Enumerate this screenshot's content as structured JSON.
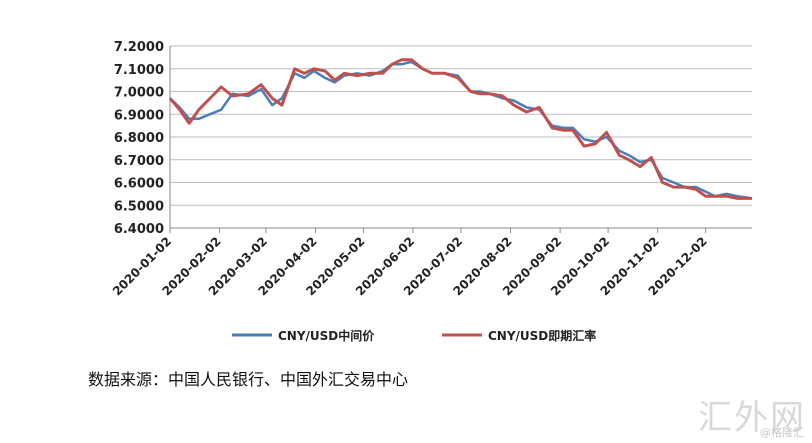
{
  "chart_data": {
    "type": "line",
    "title": "",
    "xlabel": "",
    "ylabel": "",
    "ylim": [
      6.4,
      7.2
    ],
    "yticks": [
      "6.4000",
      "6.5000",
      "6.6000",
      "6.7000",
      "6.8000",
      "6.9000",
      "7.0000",
      "7.1000",
      "7.2000"
    ],
    "x_range": [
      "2020-01-02",
      "2020-12-31"
    ],
    "xticks": [
      "2020-01-02",
      "2020-02-02",
      "2020-03-02",
      "2020-04-02",
      "2020-05-02",
      "2020-06-02",
      "2020-07-02",
      "2020-08-02",
      "2020-09-02",
      "2020-10-02",
      "2020-11-02",
      "2020-12-02"
    ],
    "grid": true,
    "legend": "bottom",
    "series": [
      {
        "name": "CNY/USD中间价",
        "color": "#4a7ebb",
        "x": [
          "2020-01-02",
          "2020-01-08",
          "2020-01-14",
          "2020-01-20",
          "2020-02-03",
          "2020-02-10",
          "2020-02-20",
          "2020-02-28",
          "2020-03-06",
          "2020-03-12",
          "2020-03-20",
          "2020-03-26",
          "2020-04-01",
          "2020-04-08",
          "2020-04-14",
          "2020-04-20",
          "2020-04-28",
          "2020-05-06",
          "2020-05-14",
          "2020-05-20",
          "2020-05-26",
          "2020-06-01",
          "2020-06-08",
          "2020-06-14",
          "2020-06-22",
          "2020-06-30",
          "2020-07-08",
          "2020-07-14",
          "2020-07-20",
          "2020-07-28",
          "2020-08-04",
          "2020-08-12",
          "2020-08-20",
          "2020-08-28",
          "2020-09-04",
          "2020-09-10",
          "2020-09-17",
          "2020-09-24",
          "2020-10-01",
          "2020-10-09",
          "2020-10-15",
          "2020-10-22",
          "2020-10-29",
          "2020-11-05",
          "2020-11-12",
          "2020-11-19",
          "2020-11-26",
          "2020-12-02",
          "2020-12-08",
          "2020-12-15",
          "2020-12-22",
          "2020-12-31"
        ],
        "values": [
          6.97,
          6.93,
          6.88,
          6.88,
          6.92,
          6.99,
          6.98,
          7.01,
          6.94,
          6.97,
          7.08,
          7.06,
          7.09,
          7.06,
          7.04,
          7.07,
          7.08,
          7.07,
          7.09,
          7.12,
          7.12,
          7.13,
          7.1,
          7.08,
          7.08,
          7.07,
          7.0,
          7.0,
          6.99,
          6.97,
          6.96,
          6.93,
          6.92,
          6.85,
          6.84,
          6.84,
          6.79,
          6.78,
          6.8,
          6.74,
          6.72,
          6.69,
          6.7,
          6.62,
          6.6,
          6.58,
          6.58,
          6.56,
          6.54,
          6.55,
          6.54,
          6.53
        ]
      },
      {
        "name": "CNY/USD即期汇率",
        "color": "#c0504d",
        "x": [
          "2020-01-02",
          "2020-01-08",
          "2020-01-14",
          "2020-01-20",
          "2020-02-03",
          "2020-02-10",
          "2020-02-20",
          "2020-02-28",
          "2020-03-06",
          "2020-03-12",
          "2020-03-20",
          "2020-03-26",
          "2020-04-01",
          "2020-04-08",
          "2020-04-14",
          "2020-04-20",
          "2020-04-28",
          "2020-05-06",
          "2020-05-14",
          "2020-05-20",
          "2020-05-26",
          "2020-06-01",
          "2020-06-08",
          "2020-06-14",
          "2020-06-22",
          "2020-06-30",
          "2020-07-08",
          "2020-07-14",
          "2020-07-20",
          "2020-07-28",
          "2020-08-04",
          "2020-08-12",
          "2020-08-20",
          "2020-08-28",
          "2020-09-04",
          "2020-09-10",
          "2020-09-17",
          "2020-09-24",
          "2020-10-01",
          "2020-10-09",
          "2020-10-15",
          "2020-10-22",
          "2020-10-29",
          "2020-11-05",
          "2020-11-12",
          "2020-11-19",
          "2020-11-26",
          "2020-12-02",
          "2020-12-08",
          "2020-12-15",
          "2020-12-22",
          "2020-12-31"
        ],
        "values": [
          6.97,
          6.92,
          6.86,
          6.92,
          7.02,
          6.98,
          6.99,
          7.03,
          6.97,
          6.94,
          7.1,
          7.08,
          7.1,
          7.09,
          7.05,
          7.08,
          7.07,
          7.08,
          7.08,
          7.12,
          7.14,
          7.14,
          7.1,
          7.08,
          7.08,
          7.06,
          7.0,
          6.99,
          6.99,
          6.98,
          6.94,
          6.91,
          6.93,
          6.84,
          6.83,
          6.83,
          6.76,
          6.77,
          6.82,
          6.72,
          6.7,
          6.67,
          6.71,
          6.6,
          6.58,
          6.58,
          6.57,
          6.54,
          6.54,
          6.54,
          6.53,
          6.53
        ]
      }
    ]
  },
  "source_text": "数据来源：中国人民银行、中国外汇交易中心",
  "watermark_text": "汇外网",
  "watermark_small": "@格隆汇"
}
